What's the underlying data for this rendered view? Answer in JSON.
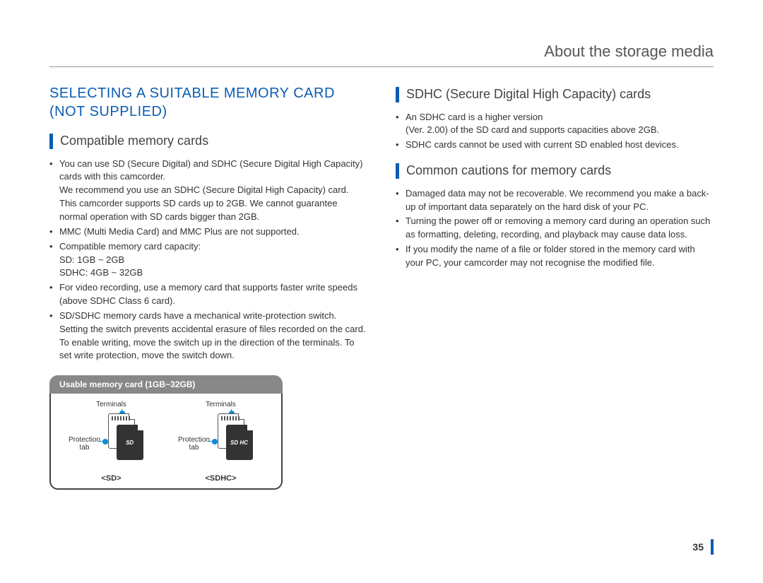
{
  "header": {
    "title": "About the storage media"
  },
  "page_number": "35",
  "colors": {
    "accent": "#0b5db3",
    "dot": "#0b8dd6",
    "header_pill_bg": "#888888",
    "header_pill_text": "#ffffff",
    "body_text": "#333333",
    "rule": "#999999"
  },
  "left": {
    "main_heading_l1": "SELECTING A SUITABLE MEMORY CARD",
    "main_heading_l2": "(NOT SUPPLIED)",
    "section1": {
      "title": "Compatible memory cards",
      "bullets": [
        "You can use SD (Secure Digital) and SDHC (Secure Digital High Capacity) cards with this camcorder.\nWe recommend you use an SDHC (Secure Digital High Capacity) card.\nThis camcorder supports SD cards up to 2GB. We cannot guarantee normal operation with SD cards bigger than 2GB.",
        "MMC (Multi Media Card) and MMC Plus are not supported.",
        "Compatible memory card capacity:\nSD: 1GB ~ 2GB\nSDHC: 4GB ~ 32GB",
        "For video recording, use a memory card that supports faster write speeds (above SDHC Class 6 card).",
        "SD/SDHC memory cards have a mechanical write-protection switch. Setting the switch prevents accidental erasure of files recorded on the card. To enable writing, move the switch up in the direction of the terminals. To set write protection, move the switch down."
      ]
    },
    "card_box": {
      "header": "Usable memory card (1GB~32GB)",
      "terminals_label": "Terminals",
      "protection_label": "Protection\ntab",
      "cards": [
        {
          "name": "<SD>",
          "logo": "SD"
        },
        {
          "name": "<SDHC>",
          "logo": "SD HC"
        }
      ]
    }
  },
  "right": {
    "section1": {
      "title": "SDHC (Secure Digital High Capacity) cards",
      "bullets": [
        "An SDHC card is a higher version\n(Ver. 2.00) of the SD card and supports capacities above 2GB.",
        "SDHC cards cannot be used with current SD enabled host devices."
      ]
    },
    "section2": {
      "title": "Common cautions for memory cards",
      "bullets": [
        "Damaged data may not be recoverable. We recommend you make a back-up of important data separately on the hard disk of your PC.",
        "Turning the power off or removing a memory card during an operation such as formatting, deleting, recording, and playback may cause data loss.",
        "If you modify the name of a file or folder stored in the memory card with your PC, your camcorder may not recognise the modified file."
      ]
    }
  }
}
